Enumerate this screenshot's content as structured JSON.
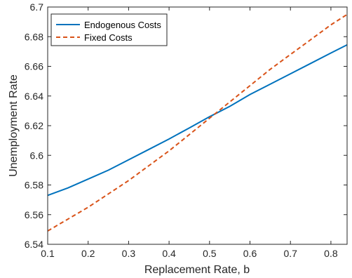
{
  "chart_data": {
    "type": "line",
    "title": "",
    "xlabel": "Replacement Rate, b",
    "ylabel": "Unemployment Rate",
    "xlim": [
      0.1,
      0.84
    ],
    "ylim": [
      6.54,
      6.7
    ],
    "xticks": [
      "0.1",
      "0.2",
      "0.3",
      "0.4",
      "0.5",
      "0.6",
      "0.7",
      "0.8"
    ],
    "yticks": [
      "6.54",
      "6.56",
      "6.58",
      "6.6",
      "6.62",
      "6.64",
      "6.66",
      "6.68",
      "6.7"
    ],
    "grid": false,
    "legend_position": "top-left",
    "series": [
      {
        "name": "Endogenous Costs",
        "color": "#0072BD",
        "style": "solid",
        "x": [
          0.1,
          0.15,
          0.2,
          0.25,
          0.3,
          0.35,
          0.4,
          0.45,
          0.5,
          0.55,
          0.6,
          0.65,
          0.7,
          0.75,
          0.8,
          0.84
        ],
        "y": [
          6.573,
          6.578,
          6.584,
          6.59,
          6.597,
          6.604,
          6.611,
          6.6185,
          6.626,
          6.633,
          6.641,
          6.648,
          6.655,
          6.662,
          6.669,
          6.6745
        ]
      },
      {
        "name": "Fixed Costs",
        "color": "#D95319",
        "style": "dashed",
        "x": [
          0.1,
          0.15,
          0.2,
          0.25,
          0.3,
          0.35,
          0.4,
          0.45,
          0.5,
          0.55,
          0.6,
          0.65,
          0.7,
          0.75,
          0.8,
          0.84
        ],
        "y": [
          6.549,
          6.557,
          6.565,
          6.574,
          6.583,
          6.593,
          6.603,
          6.614,
          6.625,
          6.636,
          6.647,
          6.658,
          6.668,
          6.678,
          6.688,
          6.695
        ]
      }
    ]
  }
}
